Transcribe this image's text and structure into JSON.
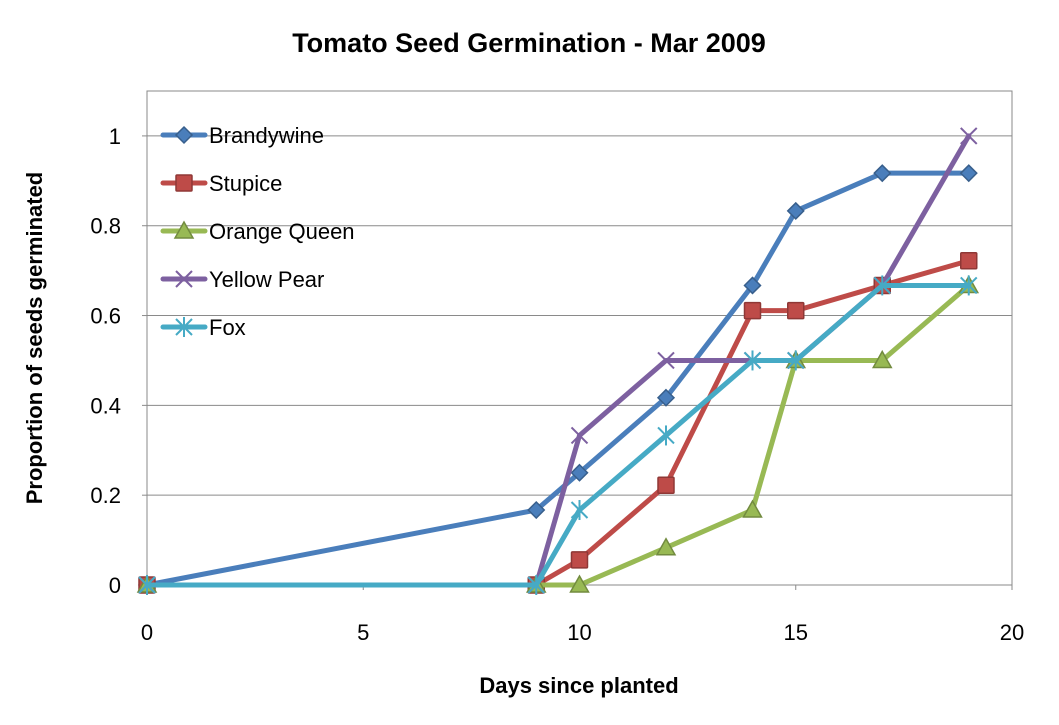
{
  "chart_data": {
    "type": "line",
    "title": "Tomato Seed Germination - Mar 2009",
    "xlabel": "Days since planted",
    "ylabel": "Proportion of seeds germinated",
    "xlim": [
      0,
      20
    ],
    "ylim": [
      0,
      1.1
    ],
    "xticks": [
      0,
      5,
      10,
      15,
      20
    ],
    "yticks": [
      0,
      0.2,
      0.4,
      0.6,
      0.8,
      1
    ],
    "xtick_labels": [
      "0",
      "5",
      "10",
      "15",
      "20"
    ],
    "ytick_labels": [
      "0",
      "0.2",
      "0.4",
      "0.6",
      "0.8",
      "1"
    ],
    "grid": "horizontal",
    "legend_position": "top-left",
    "series": [
      {
        "name": "Brandywine",
        "color": "#4a7ebb",
        "marker": "diamond",
        "x": [
          0,
          9,
          10,
          12,
          14,
          15,
          17,
          19
        ],
        "y": [
          0,
          0.167,
          0.25,
          0.417,
          0.667,
          0.833,
          0.917,
          0.917
        ]
      },
      {
        "name": "Stupice",
        "color": "#be4b48",
        "marker": "square",
        "x": [
          0,
          9,
          10,
          12,
          14,
          15,
          17,
          19
        ],
        "y": [
          0,
          0,
          0.056,
          0.222,
          0.611,
          0.611,
          0.667,
          0.722
        ]
      },
      {
        "name": "Orange Queen",
        "color": "#98b954",
        "marker": "triangle",
        "x": [
          0,
          9,
          10,
          12,
          14,
          15,
          17,
          19
        ],
        "y": [
          0,
          0,
          0,
          0.083,
          0.167,
          0.5,
          0.5,
          0.667
        ]
      },
      {
        "name": "Yellow Pear",
        "color": "#7d60a0",
        "marker": "x",
        "x": [
          0,
          9,
          10,
          12,
          14,
          15,
          17,
          19
        ],
        "y": [
          0,
          0,
          0.333,
          0.5,
          0.5,
          0.5,
          0.667,
          1.0
        ]
      },
      {
        "name": "Fox",
        "color": "#46aac5",
        "marker": "star",
        "x": [
          0,
          9,
          10,
          12,
          14,
          15,
          17,
          19
        ],
        "y": [
          0,
          0,
          0.167,
          0.333,
          0.5,
          0.5,
          0.667,
          0.667
        ]
      }
    ]
  }
}
